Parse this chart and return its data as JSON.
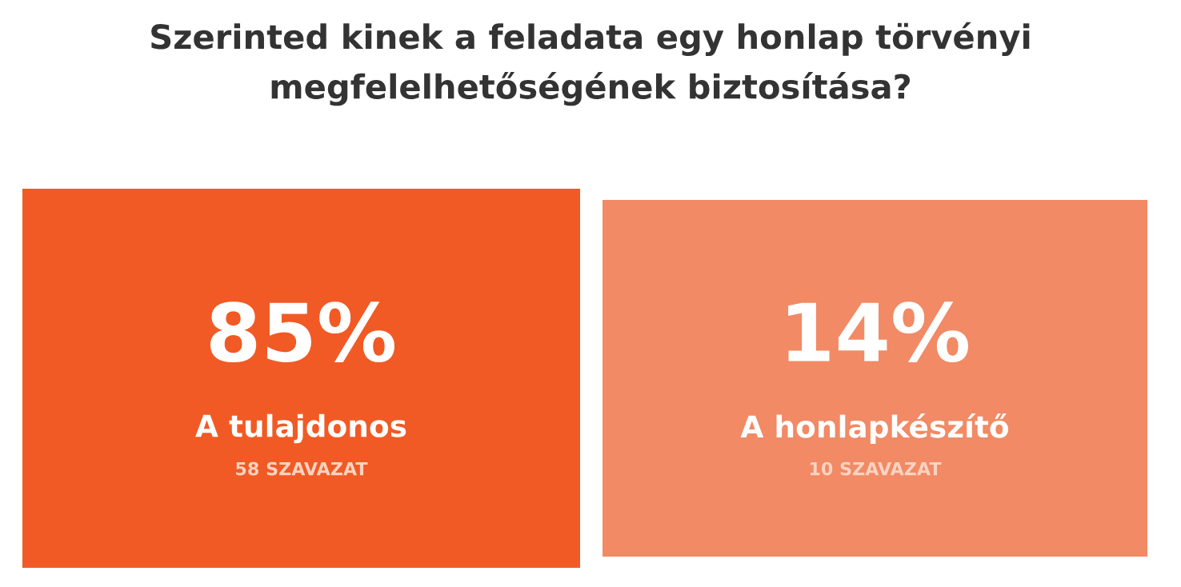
{
  "chart_data": {
    "type": "other",
    "title": "Szerinted kinek a feladata egy honlap törvényi megfelelhetőségének biztosítása?",
    "categories": [
      "A tulajdonos",
      "A honlapkészítő"
    ],
    "values": [
      85,
      14
    ],
    "value_labels": [
      "85%",
      "14%"
    ],
    "colors": [
      "#f15a24",
      "#f18a65"
    ],
    "annotations": [
      "58 SZAVAZAT",
      "10 SZAVAZAT"
    ]
  }
}
